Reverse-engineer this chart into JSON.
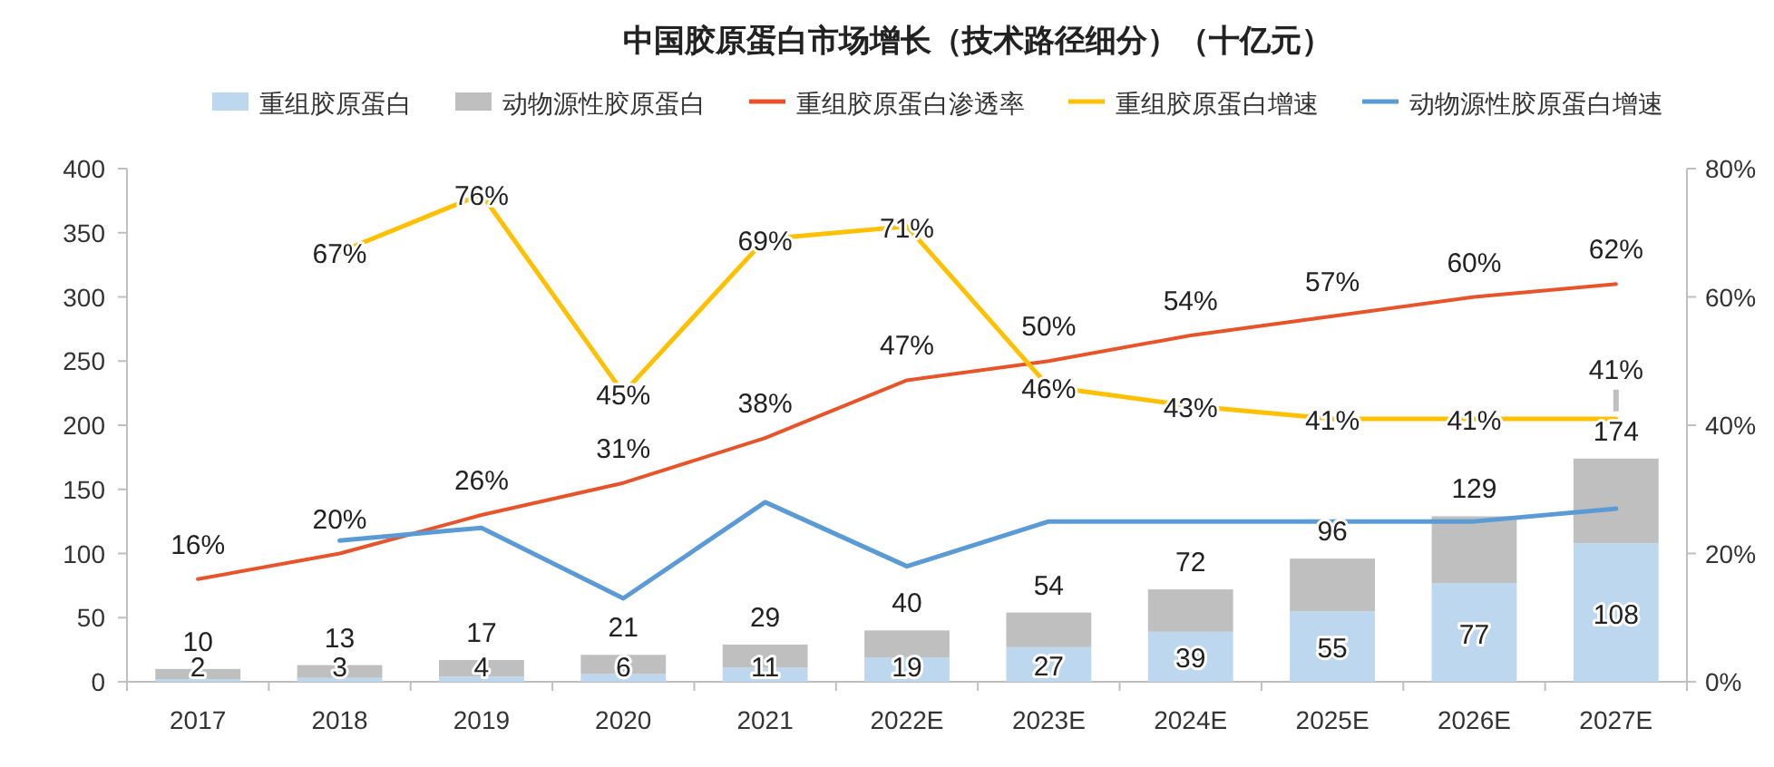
{
  "chart_data": {
    "type": "bar",
    "title": "中国胶原蛋白市场增长（技术路径细分）（十亿元）",
    "categories": [
      "2017",
      "2018",
      "2019",
      "2020",
      "2021",
      "2022E",
      "2023E",
      "2024E",
      "2025E",
      "2026E",
      "2027E"
    ],
    "stacked": true,
    "series": [
      {
        "name": "重组胶原蛋白",
        "color": "#bdd7ee",
        "values": [
          2,
          3,
          4,
          6,
          11,
          19,
          27,
          39,
          55,
          77,
          108
        ],
        "value_labels": [
          "2",
          "3",
          "4",
          "6",
          "11",
          "19",
          "27",
          "39",
          "55",
          "77",
          "108"
        ]
      },
      {
        "name": "动物源性胶原蛋白",
        "color": "#bfbfbf",
        "values": [
          8,
          10,
          13,
          15,
          18,
          21,
          27,
          33,
          41,
          52,
          66
        ]
      },
      {
        "name": "重组胶原蛋白渗透率",
        "type": "line",
        "axis": "y2",
        "color": "#e8542a",
        "values": [
          16,
          20,
          26,
          31,
          38,
          47,
          50,
          54,
          57,
          60,
          62
        ],
        "value_labels": [
          "16%",
          "20%",
          "26%",
          "31%",
          "38%",
          "47%",
          "50%",
          "54%",
          "57%",
          "60%",
          "62%"
        ]
      },
      {
        "name": "重组胶原蛋白增速",
        "type": "line",
        "axis": "y2",
        "color": "#ffc000",
        "values": [
          null,
          67,
          76,
          45,
          69,
          71,
          46,
          43,
          41,
          41,
          41
        ],
        "value_labels": [
          null,
          "67%",
          "76%",
          "45%",
          "69%",
          "71%",
          "46%",
          "43%",
          "41%",
          "41%",
          "41%"
        ]
      },
      {
        "name": "动物源性胶原蛋白增速",
        "type": "line",
        "axis": "y2",
        "color": "#5b9bd5",
        "values": [
          null,
          22,
          24,
          13,
          28,
          18,
          25,
          25,
          25,
          25,
          27
        ]
      }
    ],
    "totals": [
      "10",
      "13",
      "17",
      "21",
      "29",
      "40",
      "54",
      "72",
      "96",
      "129",
      "174"
    ],
    "ylim": [
      0,
      400
    ],
    "yticks": [
      0,
      50,
      100,
      150,
      200,
      250,
      300,
      350,
      400
    ],
    "y2lim": [
      0,
      80
    ],
    "y2ticks": [
      {
        "value": 0,
        "label": "0%"
      },
      {
        "value": 20,
        "label": "20%"
      },
      {
        "value": 40,
        "label": "40%"
      },
      {
        "value": 60,
        "label": "60%"
      },
      {
        "value": 80,
        "label": "80%"
      }
    ],
    "legend": "top",
    "grid": false,
    "line_style": "solid",
    "marker": "none"
  }
}
